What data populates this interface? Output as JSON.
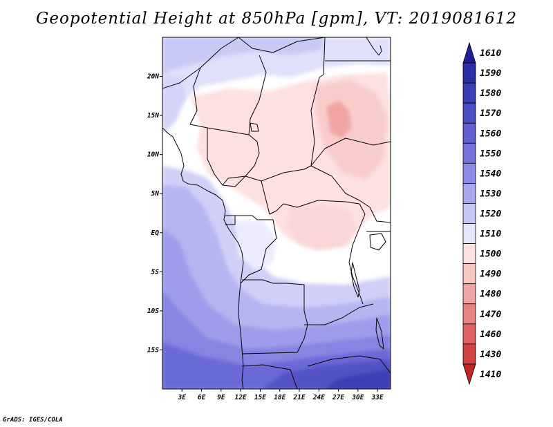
{
  "title": "Geopotential Height at 850hPa [gpm], VT: 2019081612",
  "credit": "GrADS: IGES/COLA",
  "map": {
    "lon_range": [
      0,
      35
    ],
    "lat_range": [
      -20,
      25
    ],
    "lon_ticks": [
      "3E",
      "6E",
      "9E",
      "12E",
      "15E",
      "18E",
      "21E",
      "24E",
      "27E",
      "30E",
      "33E"
    ],
    "lat_ticks": [
      "20N",
      "15N",
      "10N",
      "5N",
      "EQ",
      "5S",
      "10S",
      "15S"
    ]
  },
  "colorbar": {
    "levels": [
      {
        "label": "1610",
        "color": "#1e1e96"
      },
      {
        "label": "1590",
        "color": "#2d2da6"
      },
      {
        "label": "1580",
        "color": "#3c3cb4"
      },
      {
        "label": "1570",
        "color": "#4b4bc2"
      },
      {
        "label": "1560",
        "color": "#5f5fd0"
      },
      {
        "label": "1550",
        "color": "#7474dc"
      },
      {
        "label": "1540",
        "color": "#8c8ce6"
      },
      {
        "label": "1530",
        "color": "#a8a8ee"
      },
      {
        "label": "1520",
        "color": "#c8c8f6"
      },
      {
        "label": "1510",
        "color": "#e6e6fc"
      },
      {
        "label": "1500",
        "color": "#fde2e2"
      },
      {
        "label": "1490",
        "color": "#f9c6c6"
      },
      {
        "label": "1480",
        "color": "#f1a4a4"
      },
      {
        "label": "1470",
        "color": "#e98282"
      },
      {
        "label": "1460",
        "color": "#df6060"
      },
      {
        "label": "1430",
        "color": "#d24242"
      },
      {
        "label": "1410",
        "color": "#c02626"
      }
    ]
  }
}
